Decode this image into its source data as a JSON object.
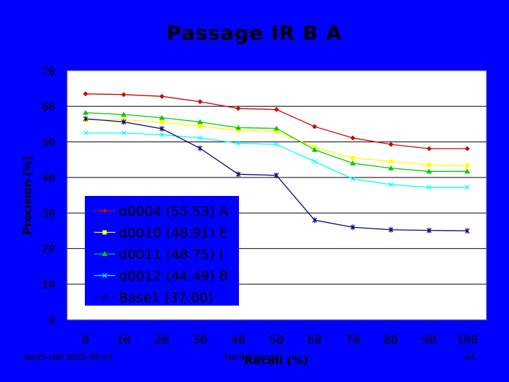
{
  "slide": {
    "title": "Passage IR B A",
    "footer_left": "ntcir5-clef  2005-09-22",
    "footer_center": "Noriko kando",
    "page_number": "44"
  },
  "chart_data": {
    "type": "line",
    "xlabel": "Recall (%)",
    "ylabel": "Precision (%)",
    "xlim": [
      0,
      100
    ],
    "ylim": [
      0,
      70
    ],
    "x": [
      0,
      10,
      20,
      30,
      40,
      50,
      60,
      70,
      80,
      90,
      100
    ],
    "xticks": [
      "0",
      "10",
      "20",
      "30",
      "40",
      "50",
      "60",
      "70",
      "80",
      "90",
      "100"
    ],
    "yticks": [
      "0",
      "10",
      "20",
      "30",
      "40",
      "50",
      "60",
      "70"
    ],
    "legend_position": "lower-left",
    "colors": {
      "background": "#0000ff",
      "plot_area": "#ffffff",
      "d0004": "#cc0000",
      "d0010": "#ffff00",
      "d0011": "#00cc00",
      "d0012": "#00ffff",
      "base1": "#000080"
    },
    "series": [
      {
        "name": "d0004 (55.53) A",
        "marker": "diamond",
        "color": "#cc0000",
        "values": [
          63.5,
          63.3,
          62.8,
          61.3,
          59.4,
          59.1,
          54.3,
          51.1,
          49.3,
          48.1,
          48.1
        ]
      },
      {
        "name": "d0010 (48.91) E",
        "marker": "square",
        "color": "#ffff00",
        "values": [
          56.2,
          56.2,
          55.5,
          54.4,
          53.2,
          53.0,
          48.5,
          45.5,
          44.5,
          43.5,
          43.3
        ]
      },
      {
        "name": "d0011 (48.75) I",
        "marker": "triangle",
        "color": "#00cc00",
        "values": [
          58.2,
          57.7,
          56.8,
          55.6,
          54.0,
          53.8,
          47.8,
          44.0,
          42.6,
          41.7,
          41.7
        ]
      },
      {
        "name": "d0012 (44.49) B",
        "marker": "x",
        "color": "#00ffff",
        "values": [
          52.5,
          52.5,
          52.0,
          51.1,
          49.6,
          49.3,
          44.5,
          39.6,
          38.0,
          37.2,
          37.2
        ]
      },
      {
        "name": "Base1 (37.00)",
        "marker": "star",
        "color": "#000080",
        "values": [
          56.5,
          55.6,
          53.7,
          48.2,
          40.9,
          40.6,
          28.0,
          26.0,
          25.3,
          25.1,
          25.0
        ]
      }
    ]
  }
}
